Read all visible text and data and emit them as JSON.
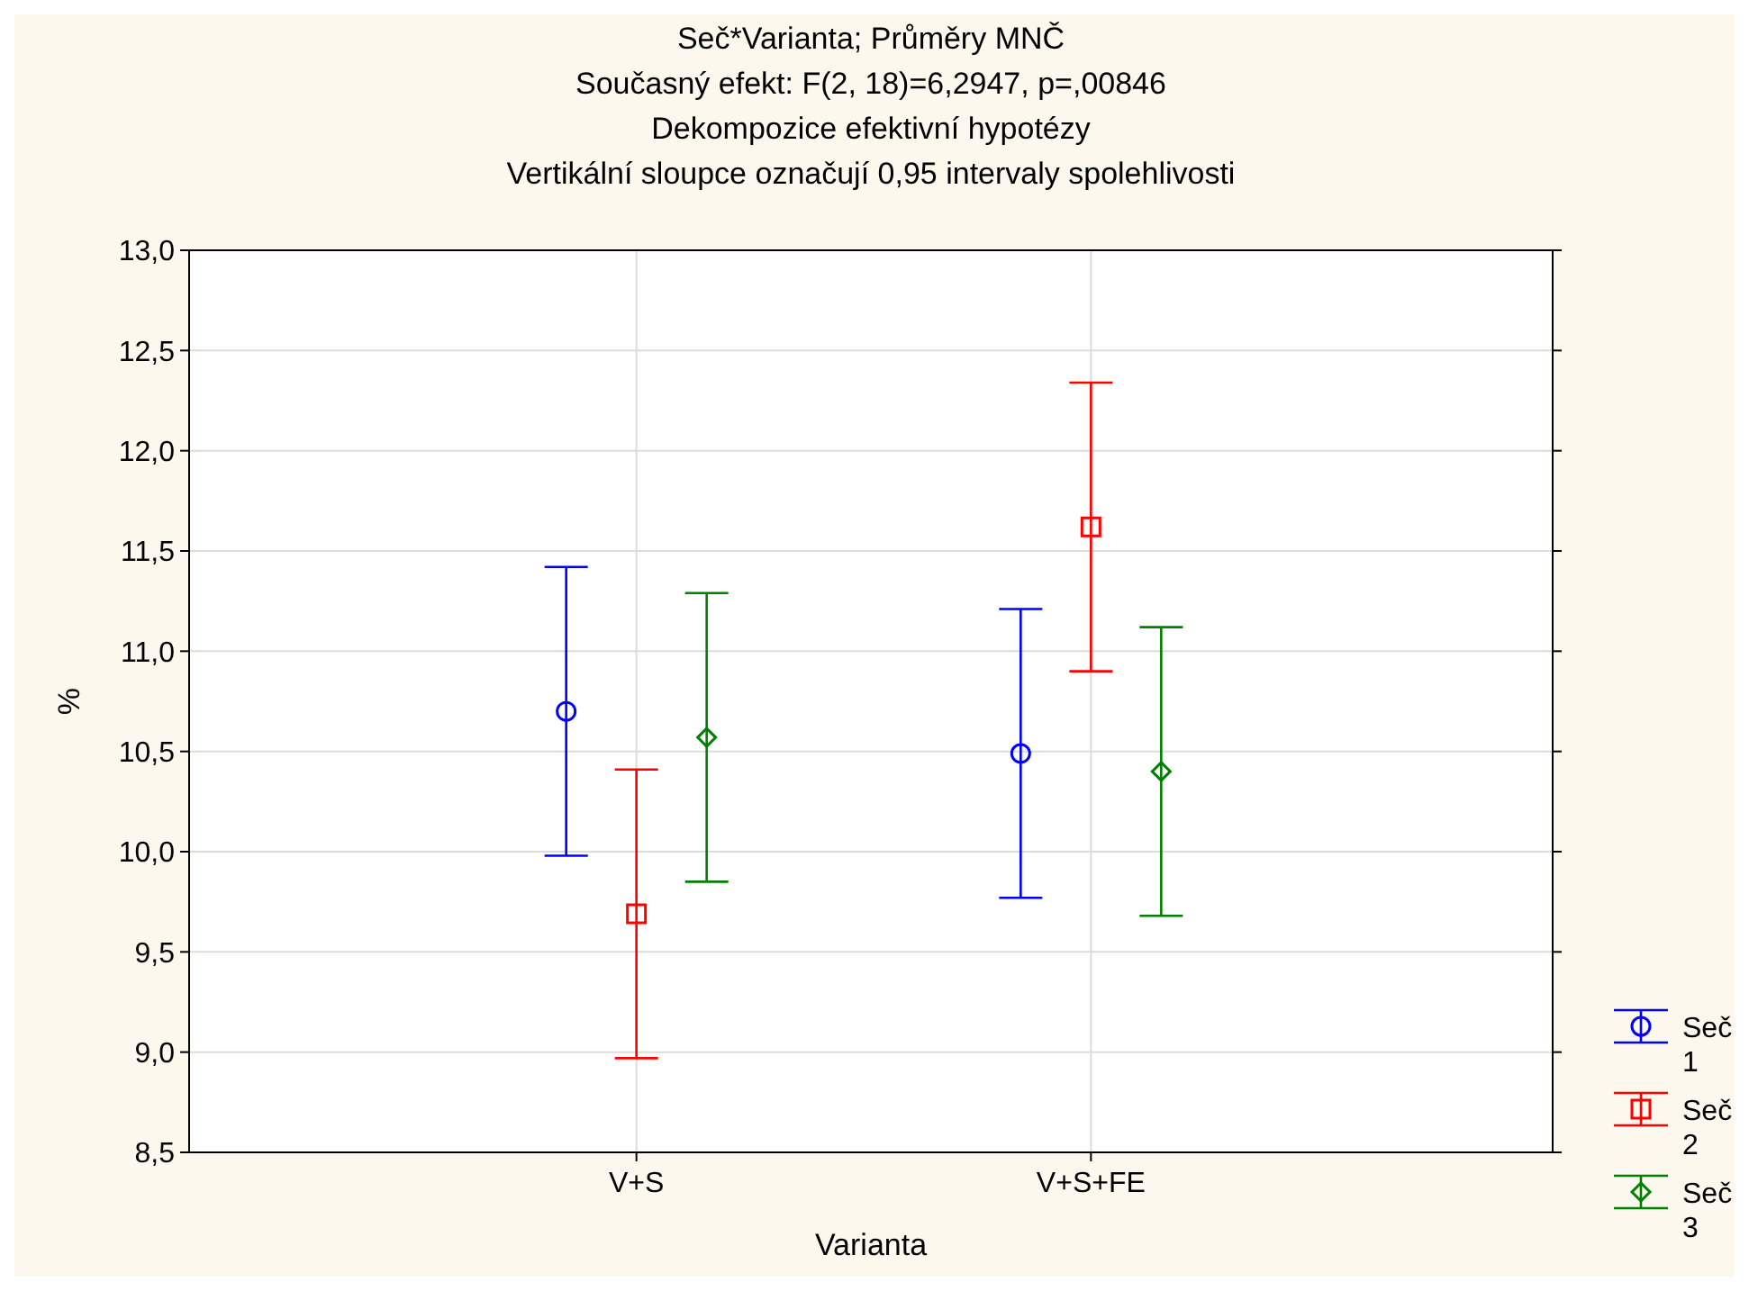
{
  "chart_data": {
    "type": "scatter",
    "title": "Seč*Varianta; Průměry MNČ",
    "subtitle": "Současný efekt: F(2, 18)=6,2947, p=,00846",
    "annotations": [
      "Dekompozice efektivní hypotézy",
      "Vertikální sloupce označují 0,95 intervaly spolehlivosti"
    ],
    "xlabel": "Varianta",
    "ylabel": "%",
    "categories": [
      "V+S",
      "V+S+FE"
    ],
    "ylim": [
      8.5,
      13
    ],
    "yticks": [
      {
        "value": 8.5,
        "label": "8,5"
      },
      {
        "value": 9,
        "label": "9,0"
      },
      {
        "value": 9.5,
        "label": "9,5"
      },
      {
        "value": 10,
        "label": "10,0"
      },
      {
        "value": 10.5,
        "label": "10,5"
      },
      {
        "value": 11,
        "label": "11,0"
      },
      {
        "value": 11.5,
        "label": "11,5"
      },
      {
        "value": 12,
        "label": "12,0"
      },
      {
        "value": 12.5,
        "label": "12,5"
      },
      {
        "value": 13,
        "label": "13,0"
      }
    ],
    "grid": true,
    "legend": "bottom right",
    "series": [
      {
        "name": "Seč 1",
        "color": "#0000ff",
        "marker": "circle",
        "values": [
          10.7,
          10.49
        ],
        "errors": [
          0.72,
          0.72
        ]
      },
      {
        "name": "Seč 2",
        "color": "#ff0000",
        "marker": "square",
        "values": [
          9.69,
          11.62
        ],
        "errors": [
          0.72,
          0.72
        ]
      },
      {
        "name": "Seč 3",
        "color": "#008000",
        "marker": "diamond",
        "values": [
          10.57,
          10.4
        ],
        "errors": [
          0.72,
          0.72
        ]
      }
    ]
  }
}
